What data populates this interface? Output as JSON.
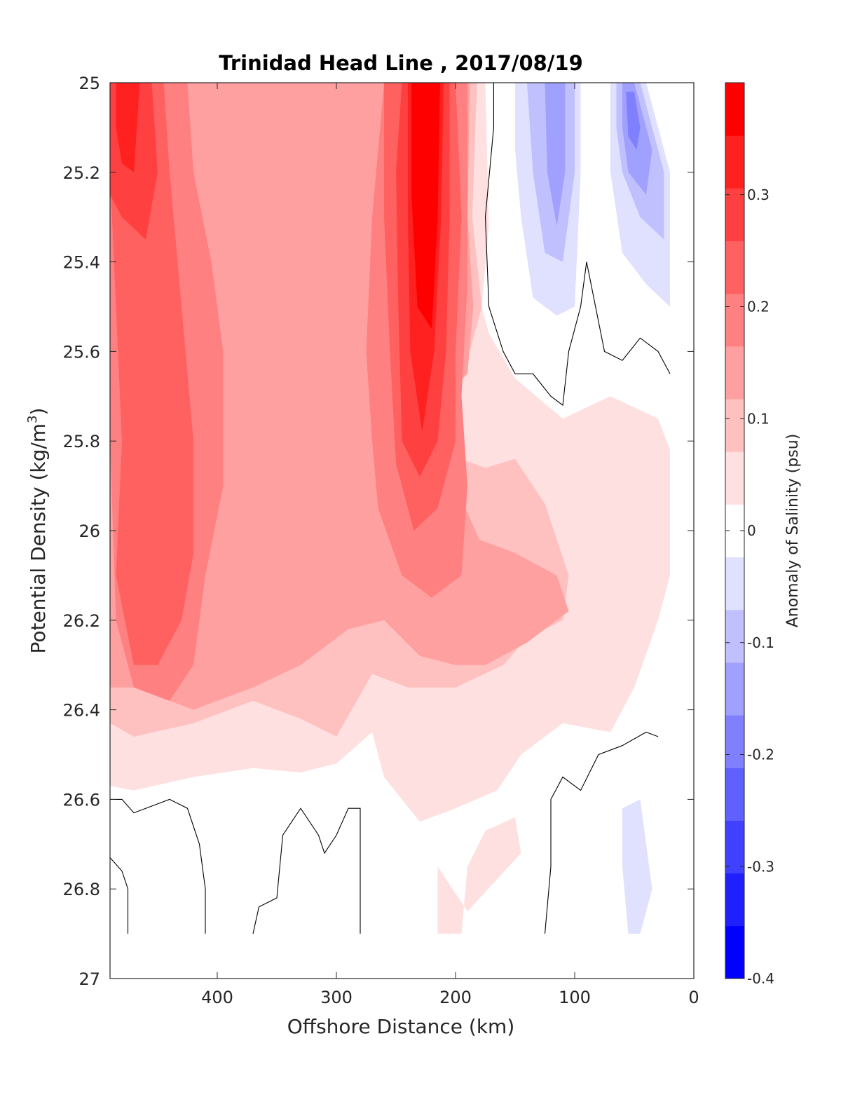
{
  "chart_data": {
    "type": "contourf",
    "title": "Trinidad Head Line , 2017/08/19",
    "xlabel": "Offshore Distance (km)",
    "ylabel": "Potential Density (kg/m",
    "ylabel_sup": "3",
    "ylabel_close": ")",
    "xlim": [
      490,
      0
    ],
    "ylim": [
      25,
      27
    ],
    "x_reversed": true,
    "y_reversed": true,
    "x_ticks": [
      "400",
      "300",
      "200",
      "100",
      "0"
    ],
    "x_tick_values": [
      400,
      300,
      200,
      100,
      0
    ],
    "y_ticks": [
      "25",
      "25.2",
      "25.4",
      "25.6",
      "25.8",
      "26",
      "26.2",
      "26.4",
      "26.6",
      "26.8",
      "27"
    ],
    "y_tick_values": [
      25,
      25.2,
      25.4,
      25.6,
      25.8,
      26,
      26.2,
      26.4,
      26.6,
      26.8,
      27
    ],
    "colorbar": {
      "label": "Anomaly of Salinity (psu)",
      "range": [
        -0.4,
        0.4
      ],
      "ticks": [
        "0.3",
        "0.2",
        "0.1",
        "0",
        "-0.1",
        "-0.2",
        "-0.3",
        "-0.4"
      ],
      "tick_values": [
        0.3,
        0.2,
        0.1,
        0,
        -0.1,
        -0.2,
        -0.3,
        -0.4
      ],
      "levels": [
        -0.4,
        -0.35,
        -0.3,
        -0.25,
        -0.2,
        -0.15,
        -0.1,
        -0.05,
        0.05,
        0.1,
        0.15,
        0.2,
        0.25,
        0.3,
        0.35,
        0.4
      ],
      "colors": [
        "#0000ff",
        "#2020ff",
        "#4040ff",
        "#6060ff",
        "#8080ff",
        "#a0a0ff",
        "#c0c0ff",
        "#e0e0ff",
        "#ffffff",
        "#ffe0e0",
        "#ffc0c0",
        "#ffa0a0",
        "#ff8080",
        "#ff6060",
        "#ff4040",
        "#ff2020",
        "#ff0000"
      ]
    },
    "regions": [
      {
        "level": 0.05,
        "color": "#ffe0e0",
        "points": [
          [
            490,
            25
          ],
          [
            175,
            25
          ],
          [
            172,
            25.32
          ],
          [
            178,
            25.5
          ],
          [
            172,
            25.56
          ],
          [
            150,
            25.66
          ],
          [
            110,
            25.75
          ],
          [
            70,
            25.7
          ],
          [
            30,
            25.75
          ],
          [
            20,
            25.82
          ],
          [
            20,
            26.1
          ],
          [
            30,
            26.2
          ],
          [
            50,
            26.35
          ],
          [
            70,
            26.45
          ],
          [
            110,
            26.43
          ],
          [
            145,
            26.5
          ],
          [
            165,
            26.58
          ],
          [
            200,
            26.62
          ],
          [
            230,
            26.65
          ],
          [
            260,
            26.55
          ],
          [
            270,
            26.45
          ],
          [
            300,
            26.52
          ],
          [
            330,
            26.54
          ],
          [
            370,
            26.53
          ],
          [
            420,
            26.55
          ],
          [
            470,
            26.58
          ],
          [
            490,
            26.57
          ]
        ]
      },
      {
        "level": 0.05,
        "color": "#ffe0e0",
        "points": [
          [
            215,
            26.9
          ],
          [
            195,
            26.9
          ],
          [
            190,
            26.75
          ],
          [
            175,
            26.67
          ],
          [
            150,
            26.64
          ],
          [
            145,
            26.72
          ],
          [
            190,
            26.85
          ],
          [
            215,
            26.75
          ]
        ]
      },
      {
        "level": 0.1,
        "color": "#ffc0c0",
        "points": [
          [
            490,
            25
          ],
          [
            182,
            25
          ],
          [
            186,
            25.3
          ],
          [
            178,
            25.5
          ],
          [
            188,
            25.6
          ],
          [
            200,
            25.62
          ],
          [
            215,
            25.6
          ],
          [
            235,
            25.72
          ],
          [
            215,
            25.82
          ],
          [
            175,
            25.86
          ],
          [
            150,
            25.84
          ],
          [
            125,
            25.94
          ],
          [
            105,
            26.1
          ],
          [
            110,
            26.2
          ],
          [
            140,
            26.24
          ],
          [
            160,
            26.3
          ],
          [
            200,
            26.35
          ],
          [
            240,
            26.35
          ],
          [
            270,
            26.32
          ],
          [
            300,
            26.46
          ],
          [
            330,
            26.42
          ],
          [
            370,
            26.38
          ],
          [
            420,
            26.43
          ],
          [
            470,
            26.46
          ],
          [
            490,
            26.43
          ]
        ]
      },
      {
        "level": 0.15,
        "color": "#ffa0a0",
        "points": [
          [
            490,
            25
          ],
          [
            188,
            25
          ],
          [
            190,
            25.3
          ],
          [
            185,
            25.5
          ],
          [
            190,
            25.65
          ],
          [
            215,
            25.72
          ],
          [
            200,
            25.9
          ],
          [
            180,
            26.02
          ],
          [
            150,
            26.05
          ],
          [
            115,
            26.1
          ],
          [
            105,
            26.18
          ],
          [
            140,
            26.25
          ],
          [
            175,
            26.3
          ],
          [
            200,
            26.3
          ],
          [
            230,
            26.28
          ],
          [
            260,
            26.2
          ],
          [
            290,
            26.22
          ],
          [
            330,
            26.3
          ],
          [
            370,
            26.35
          ],
          [
            420,
            26.4
          ],
          [
            470,
            26.35
          ],
          [
            490,
            26.35
          ]
        ]
      },
      {
        "level": 0.2,
        "color": "#ff8080",
        "points": [
          [
            490,
            25
          ],
          [
            425,
            25
          ],
          [
            420,
            25.2
          ],
          [
            405,
            25.4
          ],
          [
            395,
            25.6
          ],
          [
            395,
            25.9
          ],
          [
            410,
            26.1
          ],
          [
            420,
            26.3
          ],
          [
            440,
            26.38
          ],
          [
            470,
            26.35
          ],
          [
            485,
            26.2
          ],
          [
            490,
            25.8
          ]
        ]
      },
      {
        "level": 0.2,
        "color": "#ff8080",
        "points": [
          [
            275,
            25.6
          ],
          [
            270,
            25.8
          ],
          [
            265,
            25.95
          ],
          [
            245,
            26.1
          ],
          [
            220,
            26.15
          ],
          [
            195,
            26.1
          ],
          [
            190,
            25.9
          ],
          [
            195,
            25.7
          ],
          [
            190,
            25.45
          ],
          [
            190,
            25
          ],
          [
            260,
            25
          ],
          [
            270,
            25.3
          ]
        ]
      },
      {
        "level": 0.25,
        "color": "#ff6060",
        "points": [
          [
            490,
            25
          ],
          [
            445,
            25
          ],
          [
            440,
            25.2
          ],
          [
            430,
            25.5
          ],
          [
            420,
            25.8
          ],
          [
            420,
            26.05
          ],
          [
            430,
            26.2
          ],
          [
            450,
            26.3
          ],
          [
            470,
            26.3
          ],
          [
            485,
            26.1
          ],
          [
            480,
            25.8
          ],
          [
            485,
            25.5
          ],
          [
            490,
            25.2
          ]
        ]
      },
      {
        "level": 0.25,
        "color": "#ff6060",
        "points": [
          [
            260,
            25
          ],
          [
            200,
            25
          ],
          [
            195,
            25.3
          ],
          [
            200,
            25.6
          ],
          [
            200,
            25.8
          ],
          [
            215,
            25.95
          ],
          [
            235,
            26
          ],
          [
            250,
            25.85
          ],
          [
            255,
            25.6
          ],
          [
            260,
            25.3
          ]
        ]
      },
      {
        "level": 0.3,
        "color": "#ff4040",
        "points": [
          [
            490,
            25
          ],
          [
            455,
            25
          ],
          [
            450,
            25.2
          ],
          [
            460,
            25.35
          ],
          [
            480,
            25.3
          ],
          [
            490,
            25.25
          ]
        ]
      },
      {
        "level": 0.3,
        "color": "#ff4040",
        "points": [
          [
            245,
            25
          ],
          [
            205,
            25
          ],
          [
            205,
            25.3
          ],
          [
            208,
            25.6
          ],
          [
            215,
            25.8
          ],
          [
            230,
            25.88
          ],
          [
            245,
            25.8
          ],
          [
            248,
            25.5
          ],
          [
            250,
            25.2
          ]
        ]
      },
      {
        "level": 0.35,
        "color": "#ff2020",
        "points": [
          [
            485,
            25
          ],
          [
            465,
            25
          ],
          [
            470,
            25.2
          ],
          [
            480,
            25.18
          ],
          [
            485,
            25.1
          ]
        ]
      },
      {
        "level": 0.35,
        "color": "#ff2020",
        "points": [
          [
            240,
            25
          ],
          [
            210,
            25
          ],
          [
            212,
            25.3
          ],
          [
            218,
            25.6
          ],
          [
            228,
            25.78
          ],
          [
            238,
            25.6
          ],
          [
            240,
            25.3
          ]
        ]
      },
      {
        "level": 0.4,
        "color": "#ff0000",
        "points": [
          [
            237,
            25
          ],
          [
            213,
            25
          ],
          [
            215,
            25.3
          ],
          [
            220,
            25.55
          ],
          [
            232,
            25.5
          ],
          [
            237,
            25.25
          ]
        ]
      },
      {
        "level": -0.05,
        "color": "#e0e0ff",
        "points": [
          [
            150,
            25
          ],
          [
            95,
            25
          ],
          [
            95,
            25.2
          ],
          [
            100,
            25.5
          ],
          [
            115,
            25.52
          ],
          [
            135,
            25.48
          ],
          [
            145,
            25.3
          ],
          [
            150,
            25.15
          ]
        ]
      },
      {
        "level": -0.05,
        "color": "#e0e0ff",
        "points": [
          [
            70,
            25
          ],
          [
            40,
            25
          ],
          [
            20,
            25.2
          ],
          [
            20,
            25.5
          ],
          [
            40,
            25.45
          ],
          [
            60,
            25.38
          ],
          [
            70,
            25.2
          ]
        ]
      },
      {
        "level": -0.05,
        "color": "#e0e0ff",
        "points": [
          [
            60,
            26.62
          ],
          [
            45,
            26.6
          ],
          [
            35,
            26.8
          ],
          [
            45,
            26.9
          ],
          [
            55,
            26.9
          ],
          [
            60,
            26.75
          ]
        ]
      },
      {
        "level": -0.1,
        "color": "#c0c0ff",
        "points": [
          [
            140,
            25
          ],
          [
            100,
            25
          ],
          [
            100,
            25.2
          ],
          [
            110,
            25.4
          ],
          [
            125,
            25.38
          ],
          [
            135,
            25.2
          ]
        ]
      },
      {
        "level": -0.1,
        "color": "#c0c0ff",
        "points": [
          [
            65,
            25
          ],
          [
            45,
            25
          ],
          [
            25,
            25.2
          ],
          [
            25,
            25.35
          ],
          [
            45,
            25.3
          ],
          [
            60,
            25.2
          ],
          [
            65,
            25.1
          ]
        ]
      },
      {
        "level": -0.15,
        "color": "#a0a0ff",
        "points": [
          [
            125,
            25
          ],
          [
            108,
            25
          ],
          [
            108,
            25.2
          ],
          [
            115,
            25.32
          ],
          [
            123,
            25.2
          ]
        ]
      },
      {
        "level": -0.15,
        "color": "#a0a0ff",
        "points": [
          [
            60,
            25
          ],
          [
            50,
            25
          ],
          [
            35,
            25.15
          ],
          [
            40,
            25.25
          ],
          [
            55,
            25.2
          ],
          [
            60,
            25.1
          ]
        ]
      },
      {
        "level": -0.2,
        "color": "#8080ff",
        "points": [
          [
            57,
            25.02
          ],
          [
            50,
            25.02
          ],
          [
            45,
            25.1
          ],
          [
            48,
            25.15
          ],
          [
            55,
            25.12
          ]
        ]
      }
    ],
    "contour_lines": [
      {
        "level": 0,
        "points": [
          [
            168,
            25
          ],
          [
            168,
            25.1
          ],
          [
            175,
            25.3
          ],
          [
            172,
            25.5
          ],
          [
            160,
            25.6
          ],
          [
            150,
            25.65
          ],
          [
            135,
            25.65
          ],
          [
            120,
            25.7
          ],
          [
            110,
            25.72
          ],
          [
            105,
            25.6
          ],
          [
            95,
            25.5
          ],
          [
            90,
            25.4
          ],
          [
            75,
            25.6
          ],
          [
            60,
            25.62
          ],
          [
            45,
            25.57
          ],
          [
            30,
            25.6
          ],
          [
            20,
            25.65
          ]
        ]
      },
      {
        "level": 0,
        "points": [
          [
            490,
            26.6
          ],
          [
            480,
            26.6
          ],
          [
            470,
            26.63
          ],
          [
            440,
            26.6
          ],
          [
            425,
            26.62
          ],
          [
            415,
            26.7
          ],
          [
            410,
            26.8
          ],
          [
            410,
            26.9
          ]
        ]
      },
      {
        "level": 0,
        "points": [
          [
            490,
            26.73
          ],
          [
            480,
            26.76
          ],
          [
            475,
            26.8
          ],
          [
            475,
            26.9
          ]
        ]
      },
      {
        "level": 0,
        "points": [
          [
            370,
            26.9
          ],
          [
            365,
            26.84
          ],
          [
            350,
            26.82
          ],
          [
            345,
            26.68
          ],
          [
            330,
            26.62
          ],
          [
            315,
            26.68
          ],
          [
            310,
            26.72
          ],
          [
            300,
            26.68
          ],
          [
            290,
            26.62
          ],
          [
            280,
            26.62
          ],
          [
            280,
            26.9
          ]
        ]
      },
      {
        "level": 0,
        "points": [
          [
            125,
            26.9
          ],
          [
            120,
            26.75
          ],
          [
            120,
            26.6
          ],
          [
            110,
            26.55
          ],
          [
            95,
            26.58
          ],
          [
            80,
            26.5
          ],
          [
            60,
            26.48
          ],
          [
            40,
            26.45
          ],
          [
            30,
            26.46
          ]
        ]
      }
    ]
  }
}
